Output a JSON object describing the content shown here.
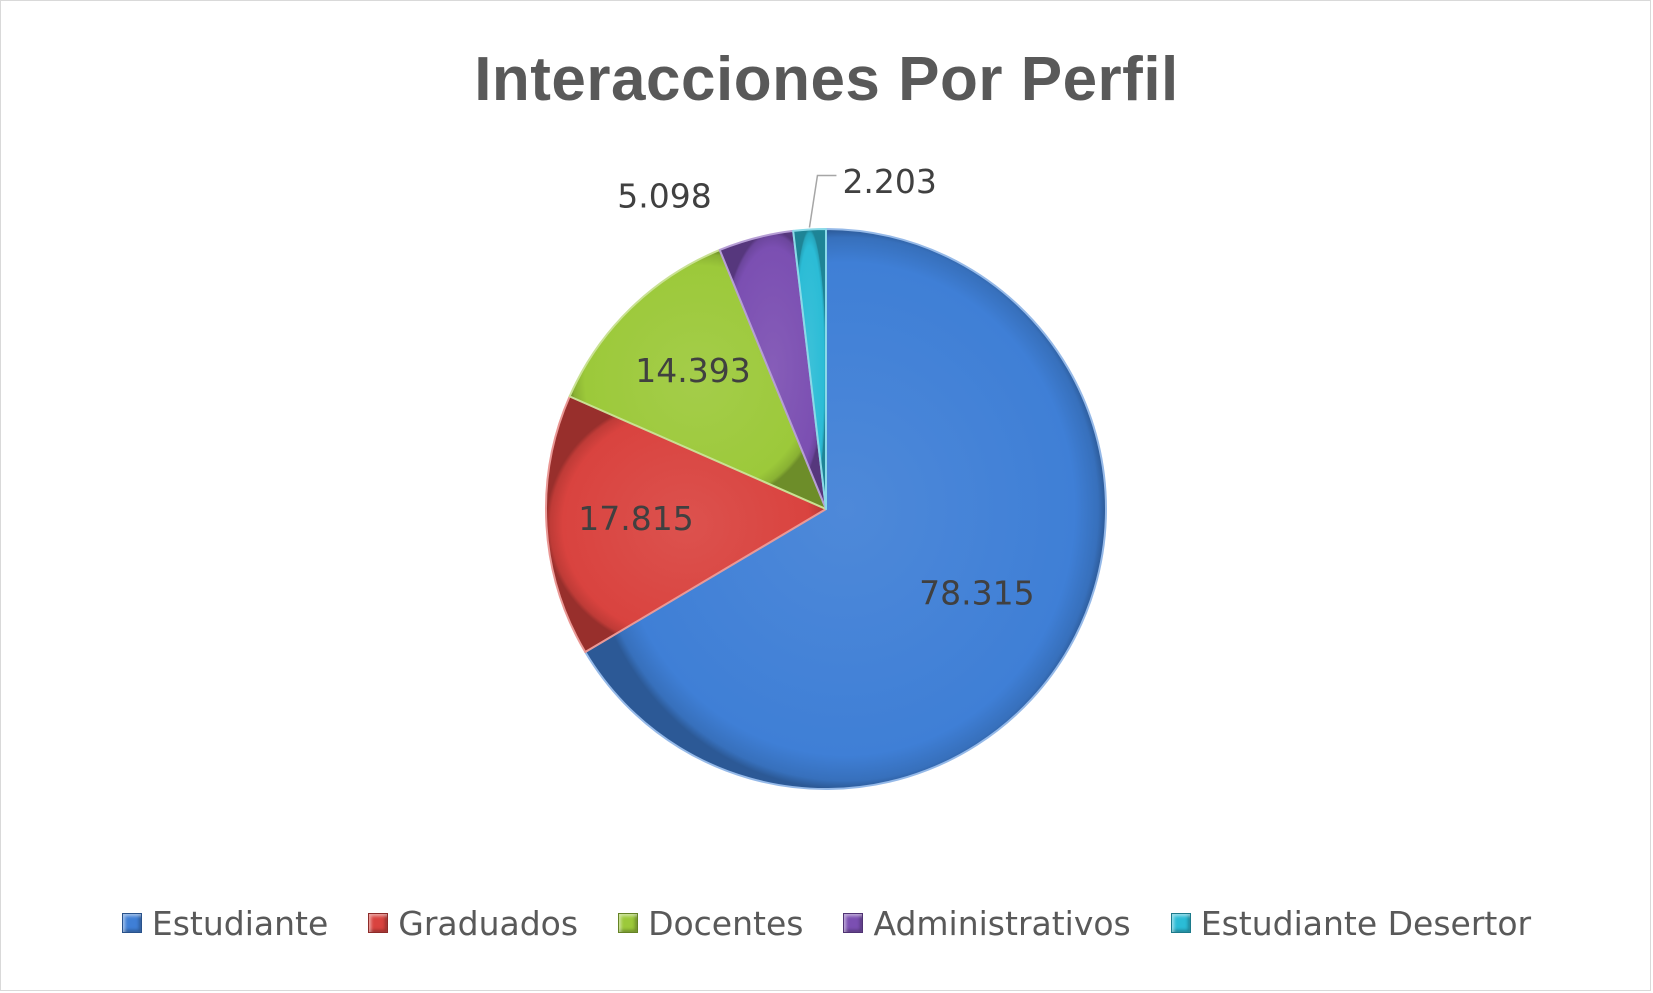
{
  "chart_data": {
    "type": "pie",
    "title": "Interacciones Por Perfil",
    "categories": [
      "Estudiante",
      "Graduados",
      "Docentes",
      "Administrativos",
      "Estudiante Desertor"
    ],
    "values": [
      78315,
      17815,
      14393,
      5098,
      2203
    ],
    "value_labels": [
      "78.315",
      "17.815",
      "14.393",
      "5.098",
      "2.203"
    ],
    "colors": [
      "#3f7fd6",
      "#d9433f",
      "#9cc93a",
      "#7b4fb2",
      "#2bbcd6"
    ],
    "legend_position": "bottom",
    "start_angle": "12 o'clock",
    "direction": "clockwise"
  }
}
